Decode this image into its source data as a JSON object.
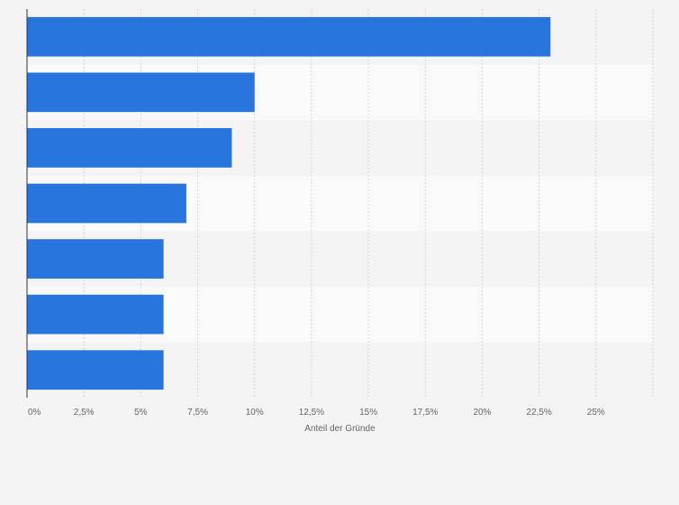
{
  "chart_data": {
    "type": "bar",
    "orientation": "horizontal",
    "categories": [
      "",
      "",
      "",
      "",
      "",
      "",
      ""
    ],
    "values": [
      23,
      10,
      9,
      7,
      6,
      6,
      6
    ],
    "xlabel": "Anteil der Gründe",
    "ylabel": "",
    "xlim": [
      0,
      27.5
    ],
    "xticks": [
      0,
      2.5,
      5,
      7.5,
      10,
      12.5,
      15,
      17.5,
      20,
      22.5,
      25
    ],
    "xtick_labels": [
      "0%",
      "2,5%",
      "5%",
      "7,5%",
      "10%",
      "12,5%",
      "15%",
      "17,5%",
      "20%",
      "22,5%",
      "25%"
    ],
    "grid": true,
    "legend": "none",
    "colors": {
      "bar": "#2876dd",
      "band_light": "#f9f9fa",
      "band_dark": "#f4f4f5",
      "grid": "#d6d6d6",
      "axis": "#333333",
      "text": "#666666"
    }
  }
}
